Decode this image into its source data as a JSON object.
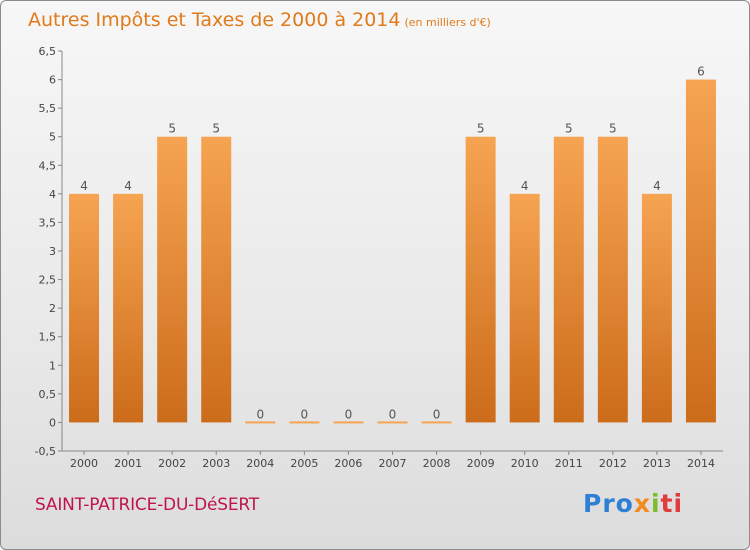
{
  "header": {
    "title": "Autres Impôts et Taxes de 2000 à 2014",
    "subtitle": "(en milliers d'€)"
  },
  "footer": {
    "commune": "SAINT-PATRICE-DU-DéSERT",
    "logo_parts": [
      "Pro",
      "x",
      "i",
      "ti"
    ]
  },
  "colors": {
    "title": "#e07a1a",
    "bar_light": "#f6a452",
    "bar_dark": "#cc6c1a",
    "commune": "#c0144a"
  },
  "chart_data": {
    "type": "bar",
    "categories": [
      "2000",
      "2001",
      "2002",
      "2003",
      "2004",
      "2005",
      "2006",
      "2007",
      "2008",
      "2009",
      "2010",
      "2011",
      "2012",
      "2013",
      "2014"
    ],
    "values": [
      4,
      4,
      5,
      5,
      0,
      0,
      0,
      0,
      0,
      5,
      4,
      5,
      5,
      4,
      6
    ],
    "title": "Autres Impôts et Taxes de 2000 à 2014",
    "xlabel": "",
    "ylabel": "",
    "ylim": [
      -0.5,
      6.5
    ],
    "yticks": [
      "-0,5",
      "0",
      "0,5",
      "1",
      "1,5",
      "2",
      "2,5",
      "3",
      "3,5",
      "4",
      "4,5",
      "5",
      "5,5",
      "6",
      "6,5"
    ],
    "grid": false,
    "legend": "none"
  }
}
